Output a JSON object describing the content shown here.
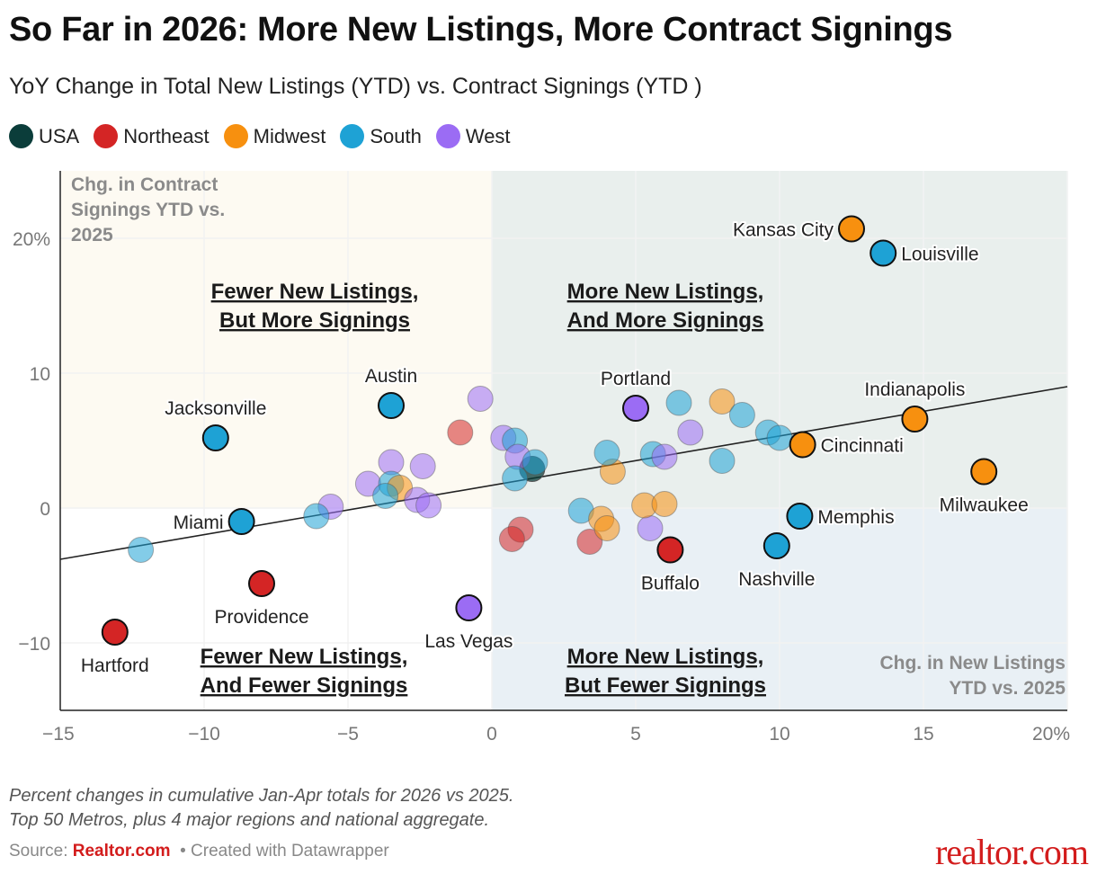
{
  "title": "So Far in 2026: More New Listings, More Contract Signings",
  "subtitle": "YoY Change in Total New Listings (YTD) vs. Contract Signings (YTD )",
  "legend": [
    {
      "label": "USA",
      "color": "#0b3d3a"
    },
    {
      "label": "Northeast",
      "color": "#d42525"
    },
    {
      "label": "Midwest",
      "color": "#f7900f"
    },
    {
      "label": "South",
      "color": "#1ea2d5"
    },
    {
      "label": "West",
      "color": "#9b6cf4"
    }
  ],
  "notes": {
    "line1": "Percent changes in cumulative Jan-Apr totals for 2026 vs 2025.",
    "line2": "Top 50 Metros, plus 4 major regions and national aggregate."
  },
  "source": {
    "prefix": "Source: ",
    "name": "Realtor.com",
    "suffix": "• Created with Datawrapper"
  },
  "logo": "realtor.com",
  "chart_data": {
    "type": "scatter",
    "xlim": [
      -15,
      20
    ],
    "ylim": [
      -15,
      25
    ],
    "x_ticks": [
      "−15",
      "−10",
      "−5",
      "0",
      "5",
      "10",
      "15",
      "20%"
    ],
    "x_tick_values": [
      -15,
      -10,
      -5,
      0,
      5,
      10,
      15,
      20
    ],
    "y_ticks": [
      "20%",
      "10",
      "0",
      "−10"
    ],
    "y_tick_values": [
      20,
      10,
      0,
      -10
    ],
    "grid": true,
    "legend_position": "top",
    "ylabel": "Chg. in Contract Signings YTD vs. 2025",
    "xlabel": "Chg. in New Listings YTD vs. 2025",
    "ylabel_lines": [
      "Chg. in Contract",
      "Signings YTD vs.",
      "2025"
    ],
    "xlabel_lines": [
      "Chg. in New Listings",
      "YTD vs. 2025"
    ],
    "quadrant_colors": {
      "top_left": "#fdfaf2",
      "top_right": "#e9efed",
      "bottom_left": "#ffffff",
      "bottom_right": "#e9f0f5"
    },
    "quadrant_labels": {
      "top_left": [
        "Fewer New Listings,",
        "But More Signings"
      ],
      "top_right": [
        "More New Listings,",
        "And More Signings"
      ],
      "bottom_left": [
        "Fewer New Listings,",
        "And Fewer Signings"
      ],
      "bottom_right": [
        "More New Listings,",
        "But Fewer Signings"
      ]
    },
    "trend_line": {
      "x1": -15,
      "y1": -3.8,
      "x2": 20,
      "y2": 9.0
    },
    "series_colors": {
      "USA": "#0b3d3a",
      "Northeast": "#d42525",
      "Midwest": "#f7900f",
      "South": "#1ea2d5",
      "West": "#9b6cf4"
    },
    "points": [
      {
        "name": "Kansas City",
        "region": "Midwest",
        "x": 12.5,
        "y": 20.7,
        "label": "left"
      },
      {
        "name": "Louisville",
        "region": "South",
        "x": 13.6,
        "y": 18.9,
        "label": "right"
      },
      {
        "name": "Indianapolis",
        "region": "Midwest",
        "x": 14.7,
        "y": 6.6,
        "label": "top"
      },
      {
        "name": "Cincinnati",
        "region": "Midwest",
        "x": 10.8,
        "y": 4.7,
        "label": "right"
      },
      {
        "name": "Milwaukee",
        "region": "Midwest",
        "x": 17.1,
        "y": 2.7,
        "label": "bottom"
      },
      {
        "name": "Memphis",
        "region": "South",
        "x": 10.7,
        "y": -0.6,
        "label": "right"
      },
      {
        "name": "Nashville",
        "region": "South",
        "x": 9.9,
        "y": -2.8,
        "label": "bottom"
      },
      {
        "name": "Buffalo",
        "region": "Northeast",
        "x": 6.2,
        "y": -3.1,
        "label": "bottom"
      },
      {
        "name": "Portland",
        "region": "West",
        "x": 5.0,
        "y": 7.4,
        "label": "top"
      },
      {
        "name": "Austin",
        "region": "South",
        "x": -3.5,
        "y": 7.6,
        "label": "top"
      },
      {
        "name": "Jacksonville",
        "region": "South",
        "x": -9.6,
        "y": 5.2,
        "label": "top"
      },
      {
        "name": "Miami",
        "region": "South",
        "x": -8.7,
        "y": -1.0,
        "label": "left"
      },
      {
        "name": "Providence",
        "region": "Northeast",
        "x": -8.0,
        "y": -5.6,
        "label": "bottom"
      },
      {
        "name": "Hartford",
        "region": "Northeast",
        "x": -13.1,
        "y": -9.2,
        "label": "bottom"
      },
      {
        "name": "Las Vegas",
        "region": "West",
        "x": -0.8,
        "y": -7.4,
        "label": "bottom"
      },
      {
        "name": "",
        "region": "USA",
        "x": 1.4,
        "y": 2.9
      },
      {
        "name": "",
        "region": "West",
        "x": -0.4,
        "y": 8.1
      },
      {
        "name": "",
        "region": "Northeast",
        "x": -1.1,
        "y": 5.6
      },
      {
        "name": "",
        "region": "West",
        "x": 0.4,
        "y": 5.2
      },
      {
        "name": "",
        "region": "South",
        "x": 0.8,
        "y": 5.0
      },
      {
        "name": "",
        "region": "West",
        "x": 0.9,
        "y": 3.8
      },
      {
        "name": "",
        "region": "South",
        "x": 1.5,
        "y": 3.4
      },
      {
        "name": "",
        "region": "South",
        "x": 0.8,
        "y": 2.2
      },
      {
        "name": "",
        "region": "West",
        "x": -3.5,
        "y": 3.4
      },
      {
        "name": "",
        "region": "West",
        "x": -2.4,
        "y": 3.1
      },
      {
        "name": "",
        "region": "West",
        "x": -4.3,
        "y": 1.8
      },
      {
        "name": "",
        "region": "South",
        "x": -3.5,
        "y": 1.8
      },
      {
        "name": "",
        "region": "Midwest",
        "x": -3.2,
        "y": 1.5
      },
      {
        "name": "",
        "region": "South",
        "x": -3.7,
        "y": 0.9
      },
      {
        "name": "",
        "region": "West",
        "x": -2.6,
        "y": 0.6
      },
      {
        "name": "",
        "region": "West",
        "x": -2.2,
        "y": 0.2
      },
      {
        "name": "",
        "region": "West",
        "x": -5.6,
        "y": 0.1
      },
      {
        "name": "",
        "region": "South",
        "x": -6.1,
        "y": -0.6
      },
      {
        "name": "",
        "region": "South",
        "x": -12.2,
        "y": -3.1
      },
      {
        "name": "",
        "region": "Northeast",
        "x": 1.0,
        "y": -1.6
      },
      {
        "name": "",
        "region": "Northeast",
        "x": 0.7,
        "y": -2.3
      },
      {
        "name": "",
        "region": "Northeast",
        "x": 3.4,
        "y": -2.5
      },
      {
        "name": "",
        "region": "South",
        "x": 3.1,
        "y": -0.2
      },
      {
        "name": "",
        "region": "Midwest",
        "x": 3.8,
        "y": -0.8
      },
      {
        "name": "",
        "region": "Midwest",
        "x": 4.0,
        "y": -1.5
      },
      {
        "name": "",
        "region": "West",
        "x": 5.5,
        "y": -1.5
      },
      {
        "name": "",
        "region": "Midwest",
        "x": 5.3,
        "y": 0.2
      },
      {
        "name": "",
        "region": "Midwest",
        "x": 6.0,
        "y": 0.3
      },
      {
        "name": "",
        "region": "Midwest",
        "x": 4.2,
        "y": 2.7
      },
      {
        "name": "",
        "region": "South",
        "x": 4.0,
        "y": 4.1
      },
      {
        "name": "",
        "region": "South",
        "x": 5.6,
        "y": 4.0
      },
      {
        "name": "",
        "region": "West",
        "x": 6.0,
        "y": 3.8
      },
      {
        "name": "",
        "region": "West",
        "x": 6.9,
        "y": 5.6
      },
      {
        "name": "",
        "region": "South",
        "x": 6.5,
        "y": 7.8
      },
      {
        "name": "",
        "region": "Midwest",
        "x": 8.0,
        "y": 7.9
      },
      {
        "name": "",
        "region": "South",
        "x": 8.7,
        "y": 6.9
      },
      {
        "name": "",
        "region": "South",
        "x": 9.6,
        "y": 5.6
      },
      {
        "name": "",
        "region": "South",
        "x": 10.0,
        "y": 5.2
      },
      {
        "name": "",
        "region": "South",
        "x": 8.0,
        "y": 3.5
      }
    ]
  }
}
